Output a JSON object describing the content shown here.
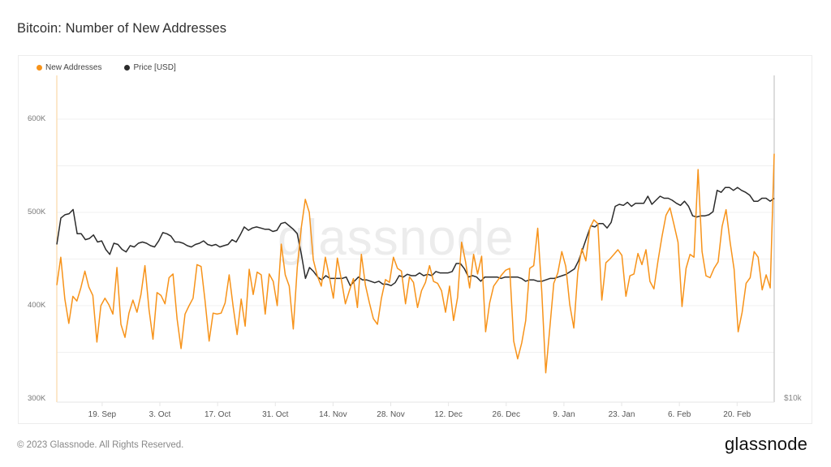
{
  "page": {
    "title": "Bitcoin: Number of New Addresses",
    "footer": "© 2023 Glassnode. All Rights Reserved.",
    "logo": "glassnode",
    "watermark": "glassnode"
  },
  "legend": [
    {
      "label": "New Addresses",
      "color": "#f7931a"
    },
    {
      "label": "Price [USD]",
      "color": "#2b2b2b"
    }
  ],
  "chart_data": {
    "type": "line",
    "title": "Bitcoin: Number of New Addresses",
    "xlabel": "",
    "ylabel": "",
    "ylim": [
      300000,
      650000
    ],
    "y_ticks": [
      "300K",
      "400K",
      "500K",
      "600K"
    ],
    "y_tick_values": [
      300000,
      400000,
      500000,
      600000
    ],
    "right_axis": {
      "ticks": [
        "$10k"
      ],
      "scale": "log"
    },
    "x_ticks": [
      "19. Sep",
      "3. Oct",
      "17. Oct",
      "31. Oct",
      "14. Nov",
      "28. Nov",
      "12. Dec",
      "26. Dec",
      "9. Jan",
      "23. Jan",
      "6. Feb",
      "20. Feb"
    ],
    "x_start": "2022-09-08",
    "x_end": "2023-03-01",
    "grid": true,
    "legend_position": "top-left",
    "series": [
      {
        "name": "New Addresses",
        "color": "#f7931a",
        "axis": "left",
        "values": [
          422000,
          452000,
          407000,
          381000,
          410000,
          405000,
          419000,
          437000,
          420000,
          411000,
          361000,
          400000,
          408000,
          401000,
          391000,
          441000,
          380000,
          366000,
          392000,
          406000,
          393000,
          412000,
          443000,
          396000,
          364000,
          414000,
          411000,
          402000,
          430000,
          434000,
          386000,
          354000,
          391000,
          400000,
          408000,
          444000,
          442000,
          405000,
          362000,
          392000,
          391000,
          392000,
          403000,
          433000,
          399000,
          369000,
          407000,
          378000,
          439000,
          412000,
          436000,
          433000,
          391000,
          434000,
          426000,
          400000,
          466000,
          433000,
          421000,
          375000,
          441000,
          484000,
          514000,
          500000,
          449000,
          432000,
          421000,
          452000,
          431000,
          408000,
          451000,
          428000,
          402000,
          416000,
          429000,
          398000,
          455000,
          422000,
          403000,
          386000,
          380000,
          408000,
          428000,
          425000,
          452000,
          440000,
          437000,
          402000,
          431000,
          425000,
          398000,
          416000,
          425000,
          443000,
          426000,
          424000,
          416000,
          393000,
          421000,
          384000,
          409000,
          468000,
          447000,
          419000,
          455000,
          434000,
          453000,
          372000,
          403000,
          421000,
          427000,
          433000,
          438000,
          440000,
          362000,
          343000,
          360000,
          384000,
          440000,
          443000,
          483000,
          415000,
          328000,
          375000,
          424000,
          435000,
          458000,
          442000,
          401000,
          376000,
          436000,
          461000,
          448000,
          483000,
          492000,
          488000,
          406000,
          446000,
          450000,
          455000,
          460000,
          454000,
          410000,
          432000,
          434000,
          456000,
          444000,
          460000,
          426000,
          418000,
          448000,
          474000,
          497000,
          505000,
          487000,
          468000,
          399000,
          440000,
          455000,
          452000,
          546000,
          458000,
          432000,
          430000,
          440000,
          447000,
          485000,
          503000,
          468000,
          439000,
          372000,
          393000,
          424000,
          430000,
          458000,
          452000,
          417000,
          433000,
          419000,
          563000
        ]
      },
      {
        "name": "Price [USD]",
        "color": "#2b2b2b",
        "axis": "right",
        "values": [
          19300,
          21600,
          21900,
          22000,
          22400,
          20200,
          20200,
          19700,
          19800,
          20100,
          19500,
          19600,
          18900,
          18500,
          19400,
          19300,
          18900,
          18700,
          19200,
          19100,
          19400,
          19500,
          19400,
          19200,
          19100,
          19600,
          20300,
          20200,
          20000,
          19500,
          19500,
          19400,
          19200,
          19100,
          19300,
          19400,
          19600,
          19300,
          19200,
          19300,
          19100,
          19200,
          19300,
          19700,
          19500,
          20100,
          20800,
          20500,
          20700,
          20800,
          20700,
          20600,
          20600,
          20400,
          20500,
          21100,
          21200,
          20900,
          20600,
          20200,
          18500,
          16700,
          17500,
          17200,
          16800,
          16600,
          16900,
          16700,
          16700,
          16700,
          16700,
          16800,
          16200,
          16500,
          16800,
          16600,
          16600,
          16500,
          16400,
          16500,
          16300,
          16300,
          16200,
          16400,
          16900,
          16800,
          17000,
          16900,
          16900,
          17100,
          16900,
          17000,
          16900,
          17200,
          17100,
          17100,
          17100,
          17200,
          17800,
          17800,
          17400,
          16800,
          16900,
          16800,
          16500,
          16800,
          16800,
          16800,
          16800,
          16700,
          16800,
          16800,
          16800,
          16800,
          16700,
          16500,
          16600,
          16600,
          16500,
          16500,
          16600,
          16700,
          16700,
          16800,
          16900,
          17000,
          17200,
          17400,
          18000,
          18900,
          19900,
          20900,
          20800,
          21100,
          21100,
          20700,
          21200,
          22700,
          22900,
          22800,
          23100,
          22700,
          23000,
          23000,
          23000,
          23700,
          22900,
          23300,
          23700,
          23500,
          23500,
          23300,
          23000,
          22800,
          23200,
          22700,
          21800,
          21700,
          21800,
          21800,
          21900,
          22200,
          24300,
          24100,
          24600,
          24600,
          24300,
          24600,
          24300,
          24100,
          23800,
          23200,
          23200,
          23500,
          23500,
          23200,
          23500
        ]
      }
    ]
  }
}
